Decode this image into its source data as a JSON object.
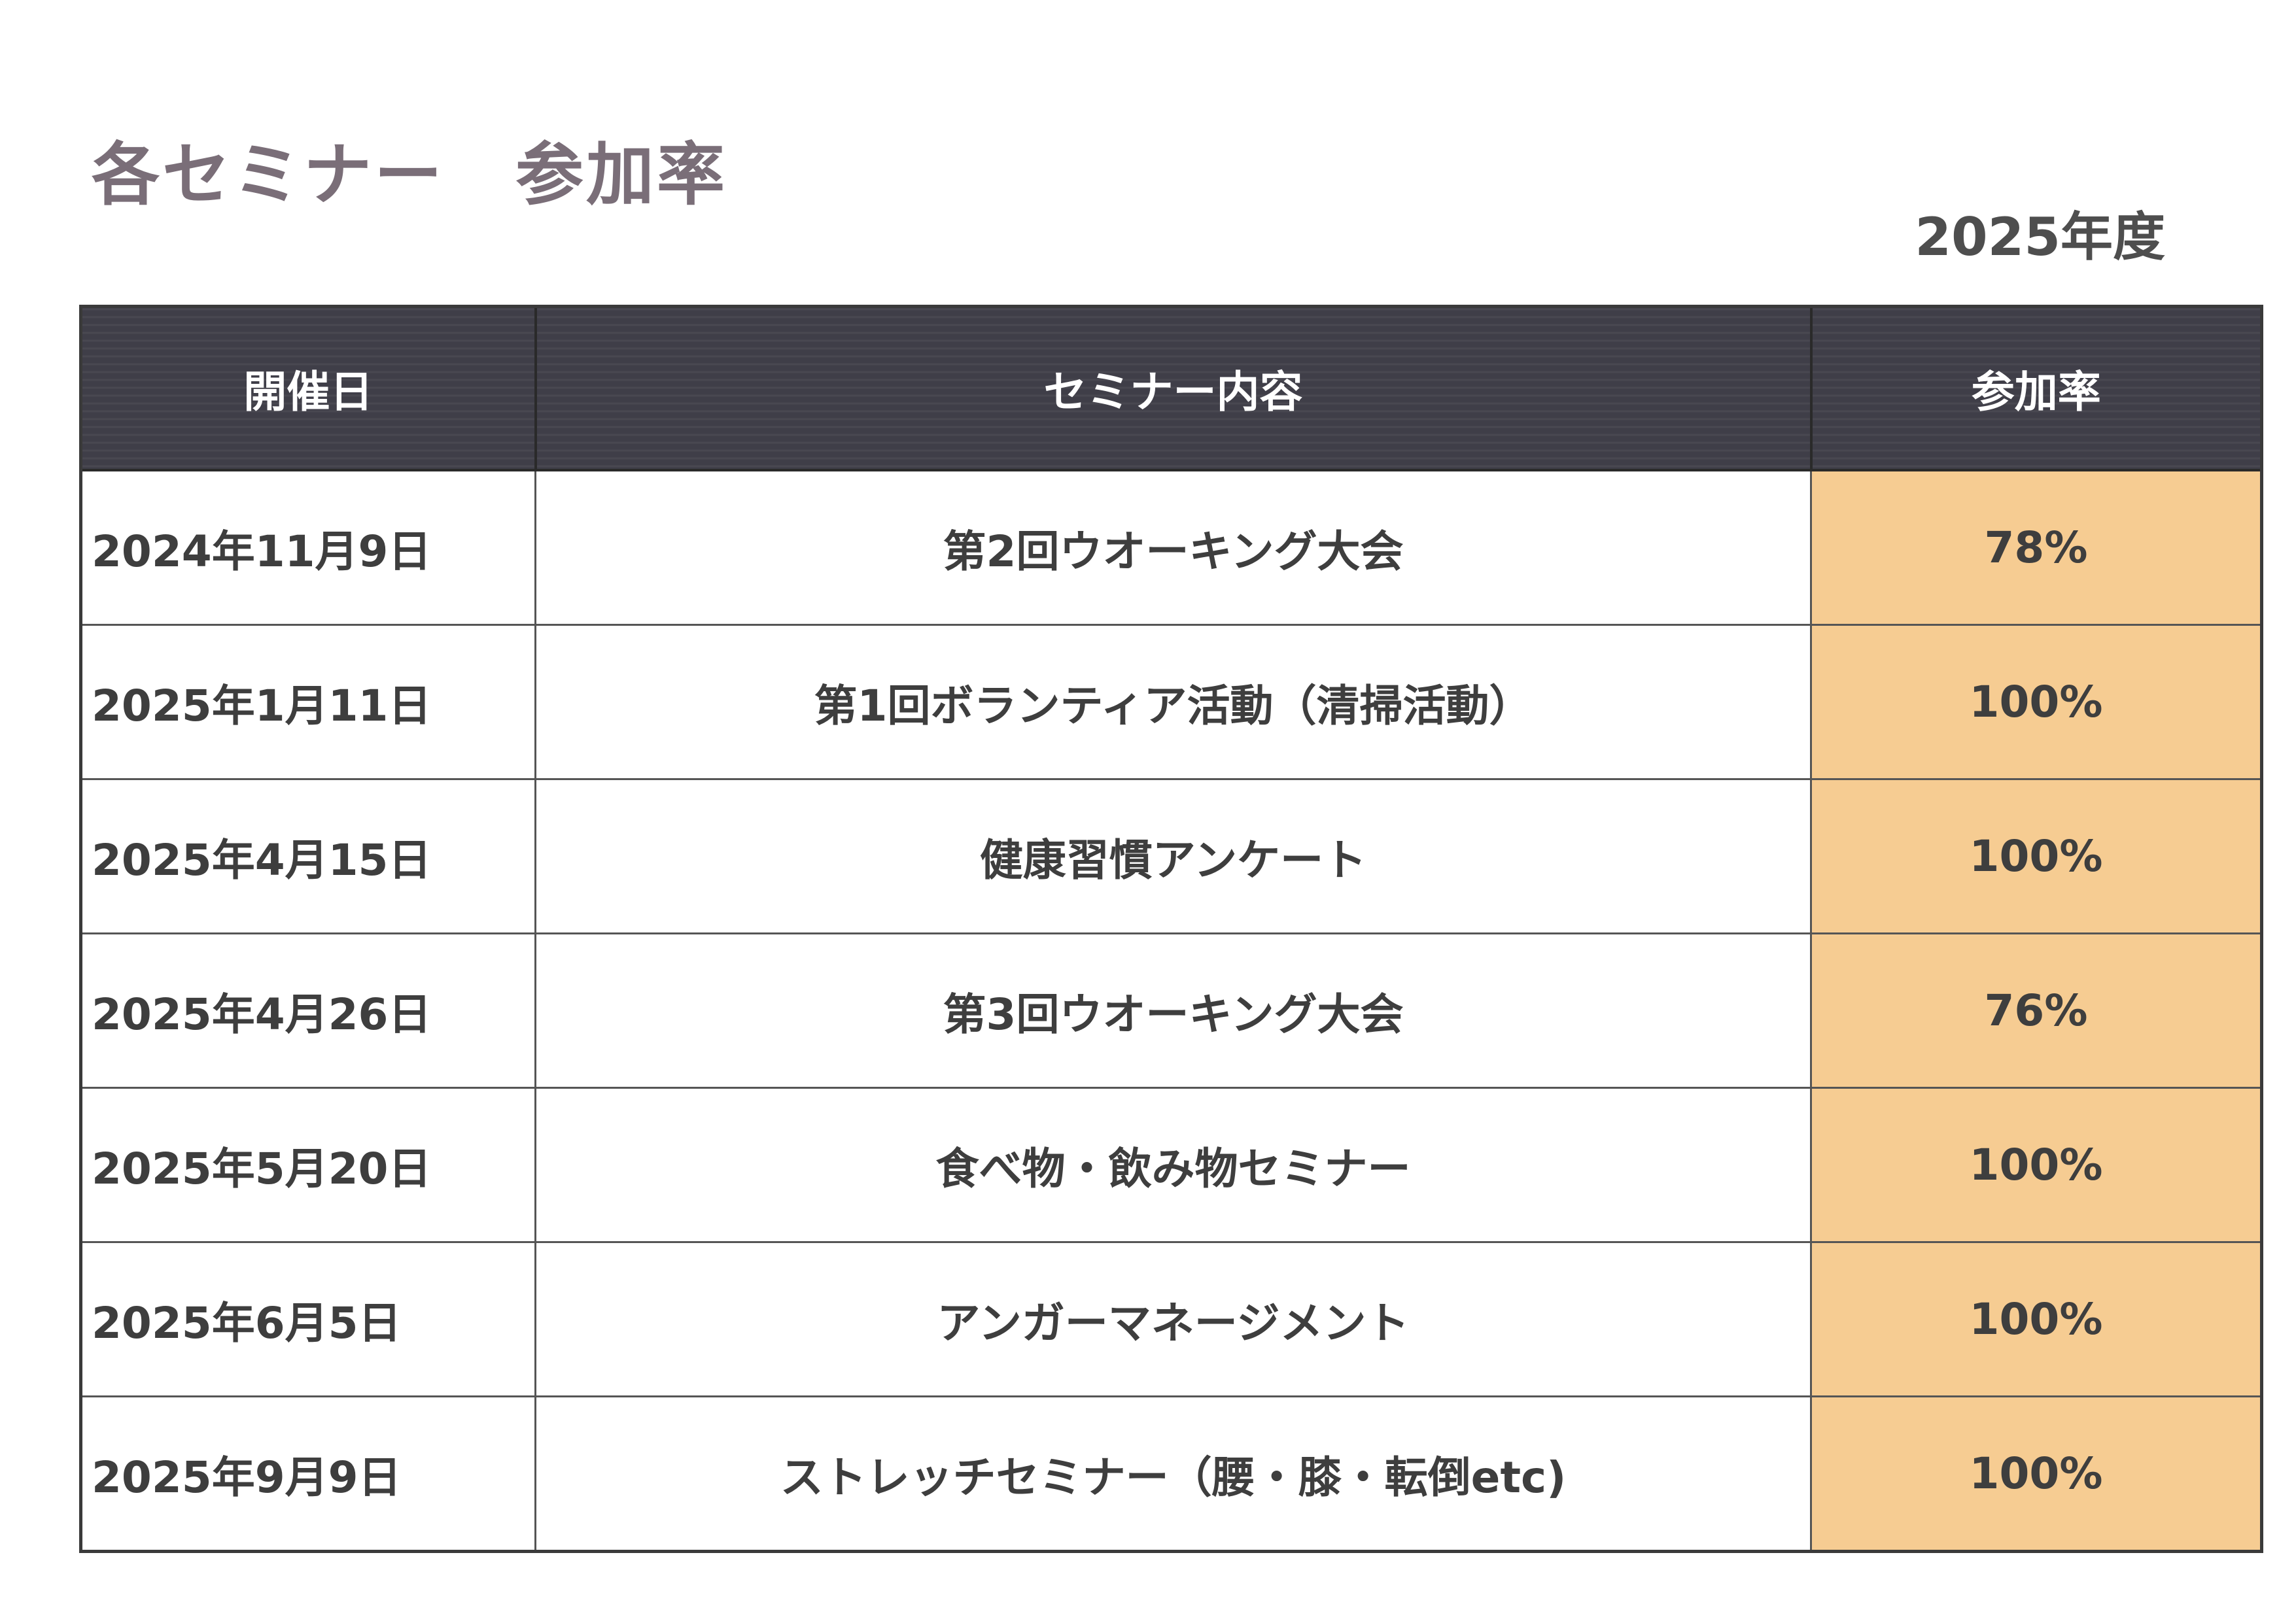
{
  "page": {
    "title": "各セミナー　参加率",
    "fiscal_year": "2025年度"
  },
  "table": {
    "headers": {
      "date": "開催日",
      "content": "セミナー内容",
      "rate": "参加率"
    },
    "rows": [
      {
        "date": "2024年11月9日",
        "content": "第2回ウオーキング大会",
        "rate": "78%"
      },
      {
        "date": "2025年1月11日",
        "content": "第1回ボランティア活動（清掃活動）",
        "rate": "100%"
      },
      {
        "date": "2025年4月15日",
        "content": "健康習慣アンケート",
        "rate": "100%"
      },
      {
        "date": "2025年4月26日",
        "content": "第3回ウオーキング大会",
        "rate": "76%"
      },
      {
        "date": "2025年5月20日",
        "content": "食べ物・飲み物セミナー",
        "rate": "100%"
      },
      {
        "date": "2025年6月5日",
        "content": "アンガーマネージメント",
        "rate": "100%"
      },
      {
        "date": "2025年9月9日",
        "content": "ストレッチセミナー（腰・膝・転倒etc)",
        "rate": "100%"
      }
    ]
  },
  "colors": {
    "header_bg": "#3f3e48",
    "rate_bg": "#f6cc92",
    "title_color": "#7a6e78"
  }
}
